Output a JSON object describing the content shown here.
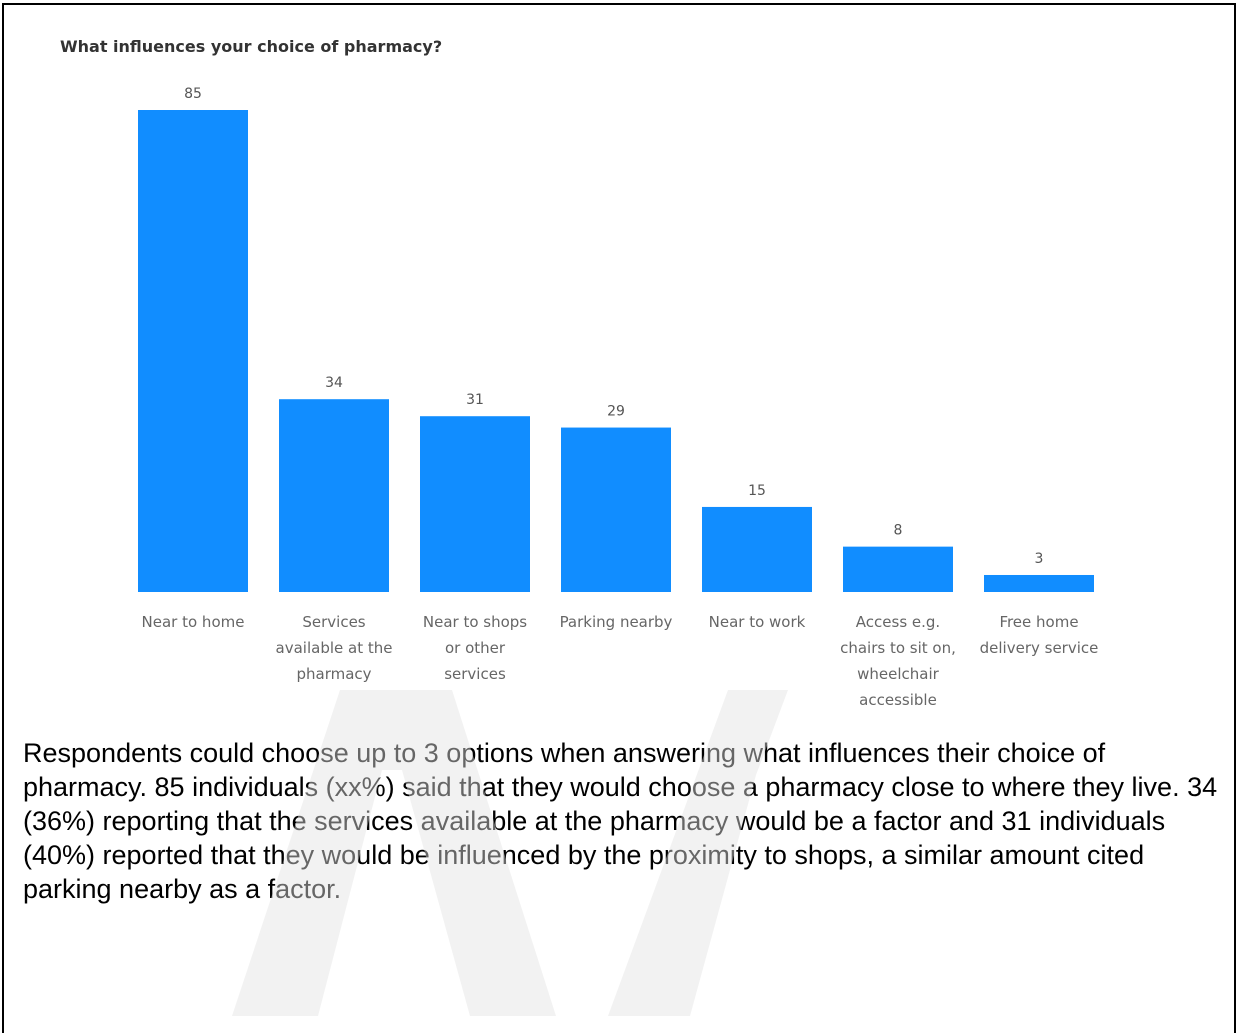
{
  "chart_data": {
    "type": "bar",
    "title": "What influences your choice of pharmacy?",
    "categories": [
      [
        "Near to home"
      ],
      [
        "Services",
        "available at the",
        "pharmacy"
      ],
      [
        "Near to shops",
        "or other",
        "services"
      ],
      [
        "Parking nearby"
      ],
      [
        "Near to work"
      ],
      [
        "Access e.g.",
        "chairs to sit on,",
        "wheelchair",
        "accessible"
      ],
      [
        "Free home",
        "delivery service"
      ]
    ],
    "values": [
      85,
      34,
      31,
      29,
      15,
      8,
      3
    ],
    "ylim": [
      0,
      85
    ],
    "grid": false,
    "bar_color": "#118dff"
  },
  "caption": "Respondents could choose up to 3 options when answering what influences their choice of pharmacy. 85 individuals (xx%) said that they would choose a pharmacy close to where they live. 34 (36%) reporting that the services available at the pharmacy would be a factor and 31 individuals (40%) reported that they would be influenced by the proximity to shops, a similar amount cited parking nearby as a factor."
}
